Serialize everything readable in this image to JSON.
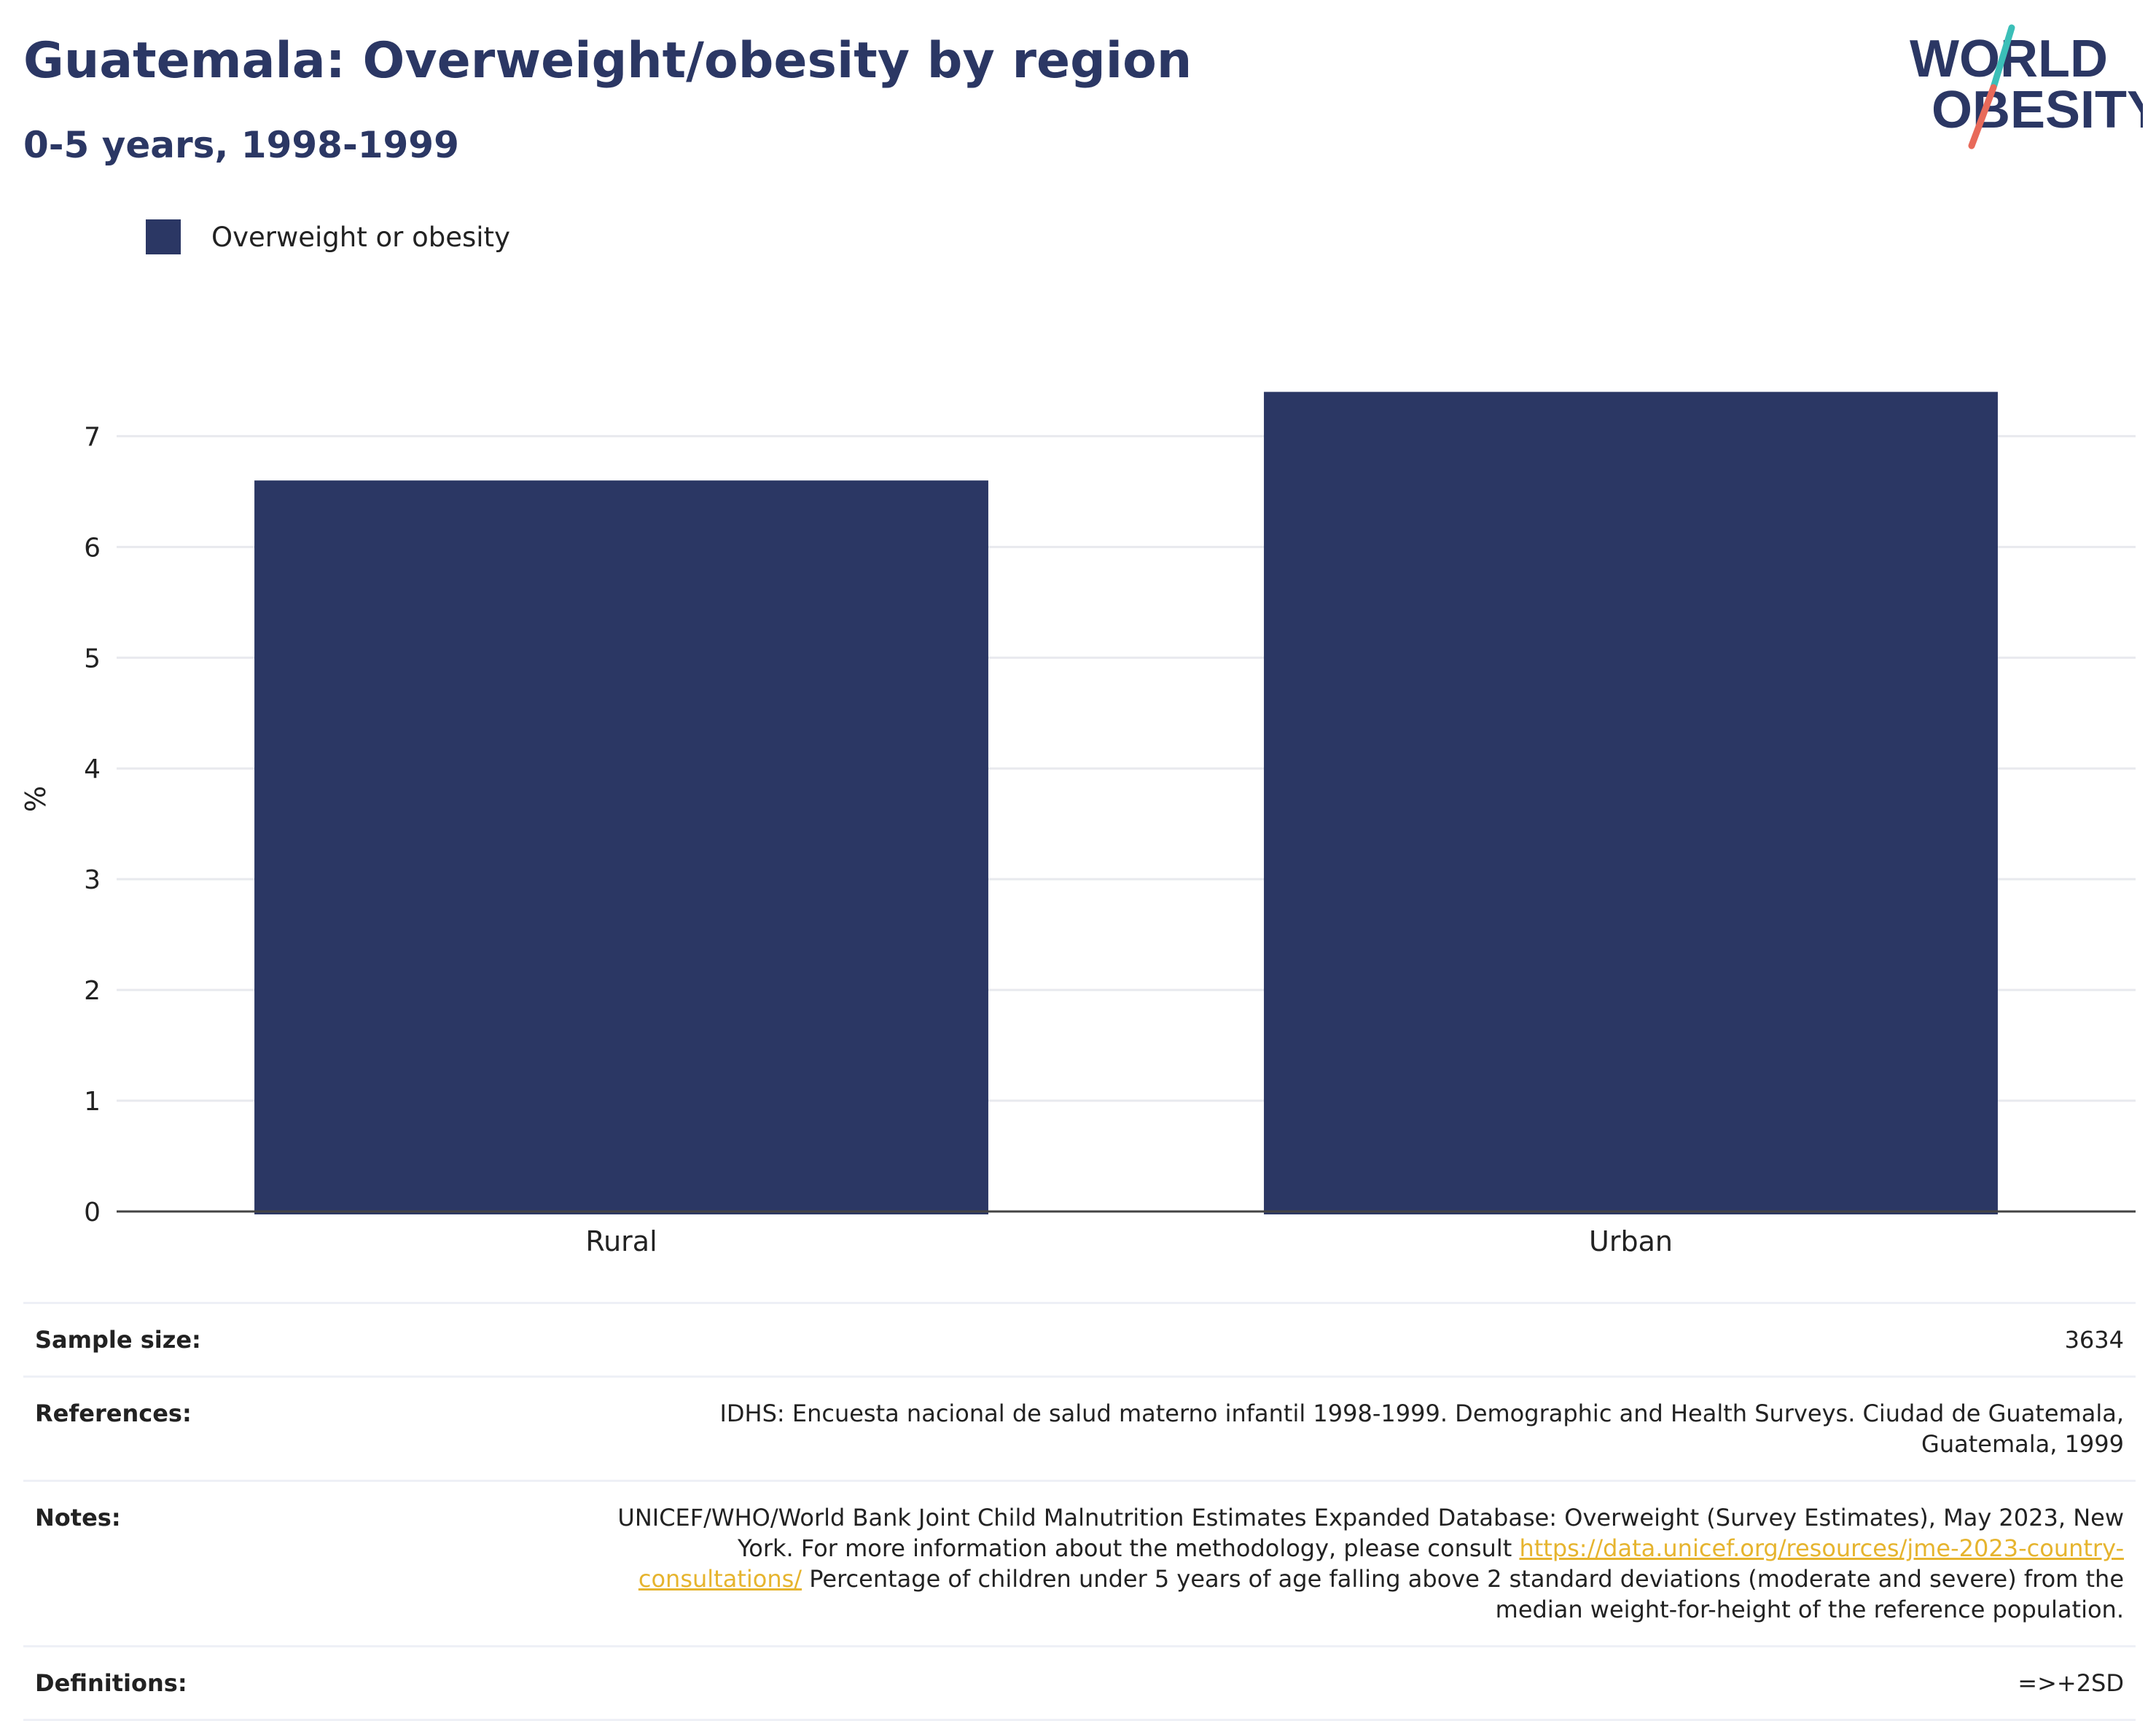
{
  "header": {
    "title": "Guatemala: Overweight/obesity by region",
    "subtitle": "0-5 years, 1998-1999"
  },
  "logo": {
    "line1": "WORLD",
    "line2": "OBESITY",
    "colors": {
      "text": "#2b3764",
      "teal": "#3bbfb8",
      "coral": "#e86a5a"
    }
  },
  "legend": {
    "label": "Overweight or obesity",
    "color": "#2b3764"
  },
  "chart_data": {
    "type": "bar",
    "categories": [
      "Rural",
      "Urban"
    ],
    "series": [
      {
        "name": "Overweight or obesity",
        "values": [
          6.6,
          7.4
        ],
        "color": "#2b3764"
      }
    ],
    "ylabel": "%",
    "xlabel": "",
    "ylim": [
      0,
      7.45
    ],
    "yticks": [
      0,
      1,
      2,
      3,
      4,
      5,
      6,
      7
    ],
    "grid": true
  },
  "info": {
    "sample_size": {
      "label": "Sample size:",
      "value": "3634"
    },
    "references": {
      "label": "References:",
      "value": "IDHS: Encuesta nacional de salud materno infantil 1998-1999. Demographic and Health Surveys. Ciudad de Guatemala, Guatemala, 1999"
    },
    "notes": {
      "label": "Notes:",
      "text_before": "UNICEF/WHO/World Bank Joint Child Malnutrition Estimates Expanded Database: Overweight (Survey Estimates), May 2023, New York. For more information about the methodology, please consult ",
      "link": "https://data.unicef.org/resources/jme-2023-country-consultations/",
      "text_after": " Percentage of children under 5 years of age falling above 2 standard deviations (moderate and severe) from the median weight-for-height of the reference population."
    },
    "definitions": {
      "label": "Definitions:",
      "value": "=>+2SD"
    }
  }
}
